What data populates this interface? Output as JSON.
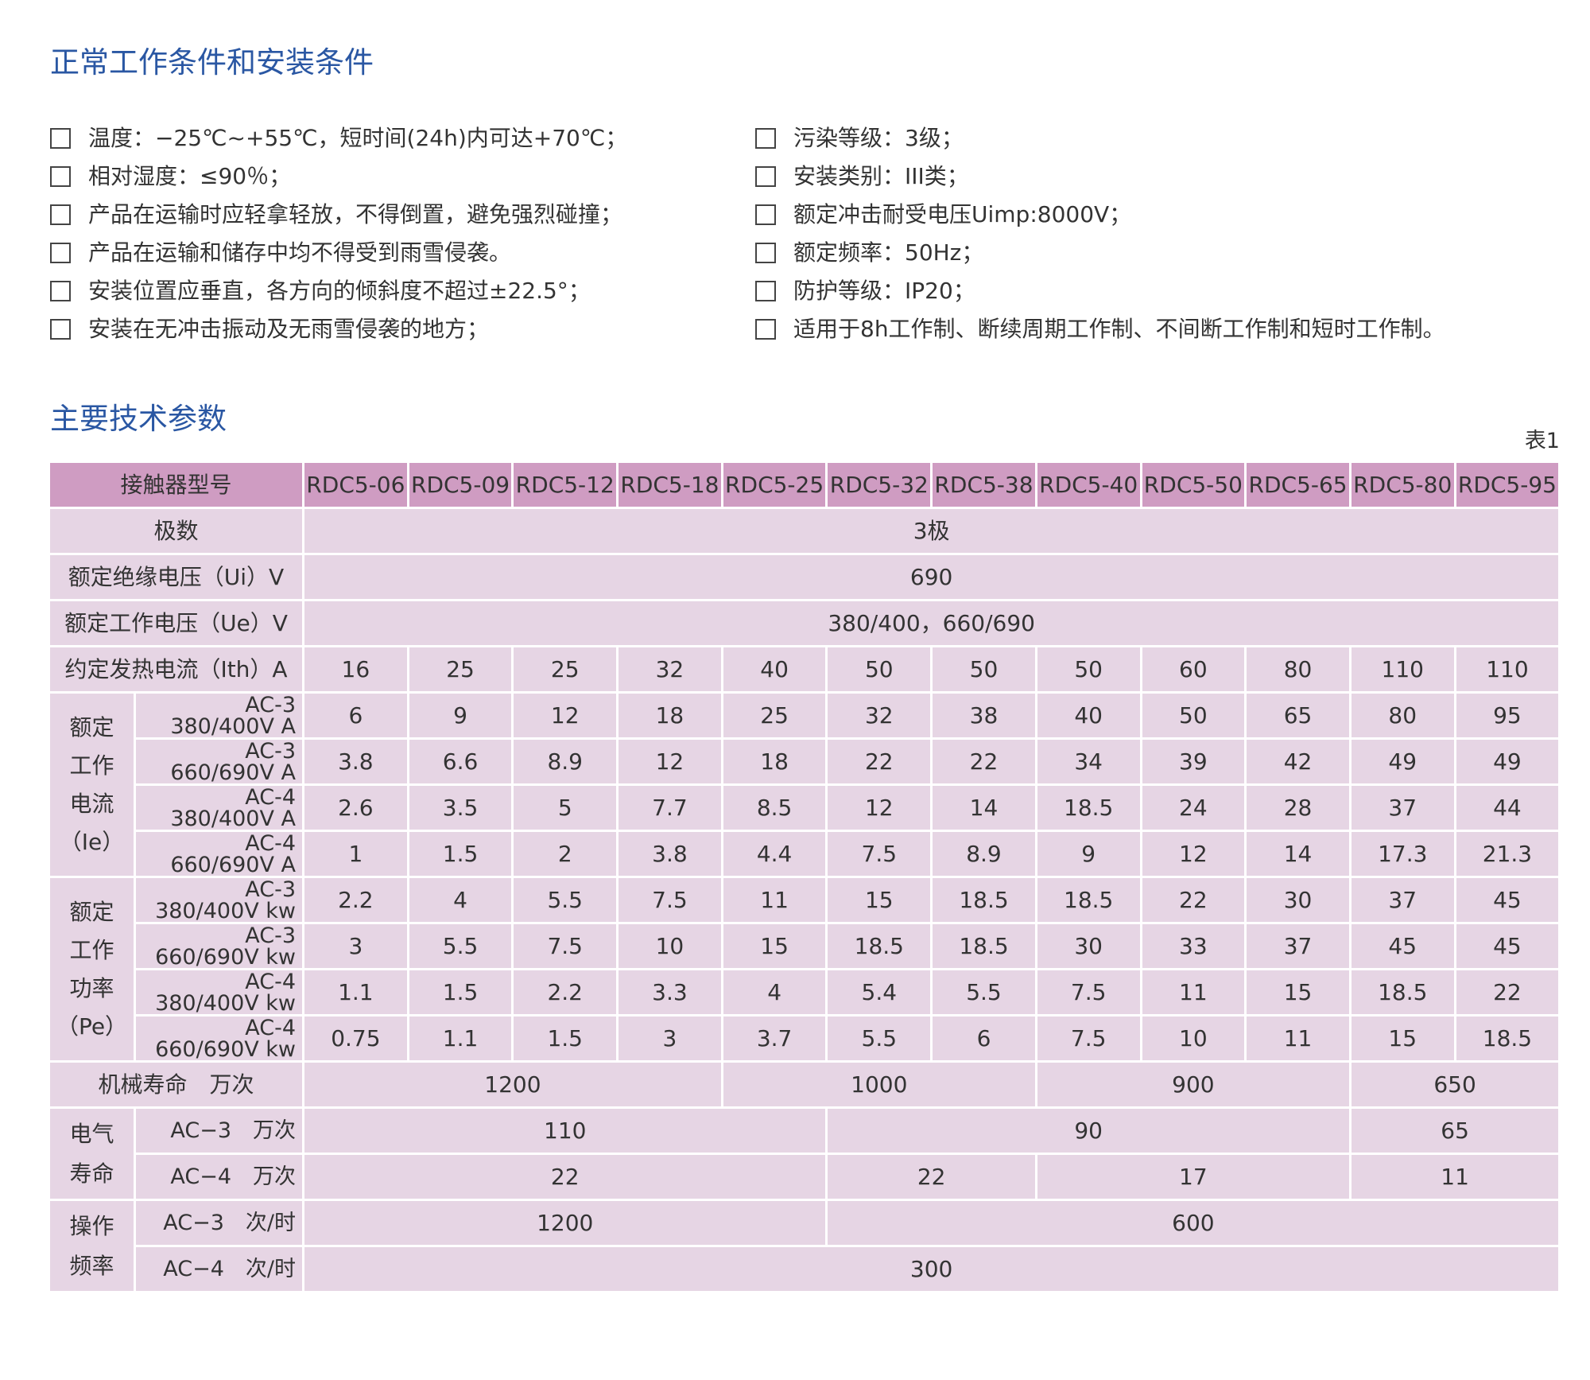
{
  "section1": {
    "title": "正常工作条件和安装条件",
    "left": [
      "温度：−25℃~+55℃，短时间(24h)内可达+70℃；",
      "相对湿度：≤90％；",
      "产品在运输时应轻拿轻放，不得倒置，避免强烈碰撞；",
      "产品在运输和储存中均不得受到雨雪侵袭。",
      "安装位置应垂直，各方向的倾斜度不超过±22.5°；",
      "安装在无冲击振动及无雨雪侵袭的地方；"
    ],
    "right": [
      "污染等级：3级；",
      "安装类别：III类；",
      "额定冲击耐受电压Uimp:8000V；",
      "额定频率：50Hz；",
      "防护等级：IP20；",
      "适用于8h工作制、断续周期工作制、不间断工作制和短时工作制。"
    ]
  },
  "section2": {
    "title": "主要技术参数"
  },
  "table": {
    "caption": "表1",
    "rows": [
      [
        "接触器型号",
        "RDC5-06",
        "RDC5-09",
        "RDC5-12",
        "RDC5-18",
        "RDC5-25",
        "RDC5-32",
        "RDC5-38",
        "RDC5-40",
        "RDC5-50",
        "RDC5-65",
        "RDC5-80",
        "RDC5-95"
      ],
      [
        "极数",
        "3极"
      ],
      [
        "额定绝缘电压（Ui）V",
        "690"
      ],
      [
        "额定工作电压（Ue）V",
        "380/400，660/690"
      ],
      [
        "约定发热电流（Ith）A",
        "16",
        "25",
        "25",
        "32",
        "40",
        "50",
        "50",
        "50",
        "60",
        "80",
        "110",
        "110"
      ],
      [
        "额定\n工作\n电流\n（Ie）",
        "AC-3\n380/400V  A",
        "6",
        "9",
        "12",
        "18",
        "25",
        "32",
        "38",
        "40",
        "50",
        "65",
        "80",
        "95"
      ],
      [
        "AC-3\n660/690V  A",
        "3.8",
        "6.6",
        "8.9",
        "12",
        "18",
        "22",
        "22",
        "34",
        "39",
        "42",
        "49",
        "49"
      ],
      [
        "AC-4\n380/400V  A",
        "2.6",
        "3.5",
        "5",
        "7.7",
        "8.5",
        "12",
        "14",
        "18.5",
        "24",
        "28",
        "37",
        "44"
      ],
      [
        "AC-4\n660/690V  A",
        "1",
        "1.5",
        "2",
        "3.8",
        "4.4",
        "7.5",
        "8.9",
        "9",
        "12",
        "14",
        "17.3",
        "21.3"
      ],
      [
        "额定\n工作\n功率\n（Pe）",
        "AC-3\n380/400V kw",
        "2.2",
        "4",
        "5.5",
        "7.5",
        "11",
        "15",
        "18.5",
        "18.5",
        "22",
        "30",
        "37",
        "45"
      ],
      [
        "AC-3\n660/690V kw",
        "3",
        "5.5",
        "7.5",
        "10",
        "15",
        "18.5",
        "18.5",
        "30",
        "33",
        "37",
        "45",
        "45"
      ],
      [
        "AC-4\n380/400V kw",
        "1.1",
        "1.5",
        "2.2",
        "3.3",
        "4",
        "5.4",
        "5.5",
        "7.5",
        "11",
        "15",
        "18.5",
        "22"
      ],
      [
        "AC-4\n660/690V kw",
        "0.75",
        "1.1",
        "1.5",
        "3",
        "3.7",
        "5.5",
        "6",
        "7.5",
        "10",
        "11",
        "15",
        "18.5"
      ],
      [
        "机械寿命　万次",
        "1200",
        "1000",
        "900",
        "650"
      ],
      [
        "电气\n寿命",
        "AC−3　万次",
        "110",
        "90",
        "65"
      ],
      [
        "AC−4　万次",
        "22",
        "22",
        "17",
        "11"
      ],
      [
        "操作\n频率",
        "AC−3　次/时",
        "1200",
        "600"
      ],
      [
        "AC−4　次/时",
        "300"
      ]
    ]
  }
}
